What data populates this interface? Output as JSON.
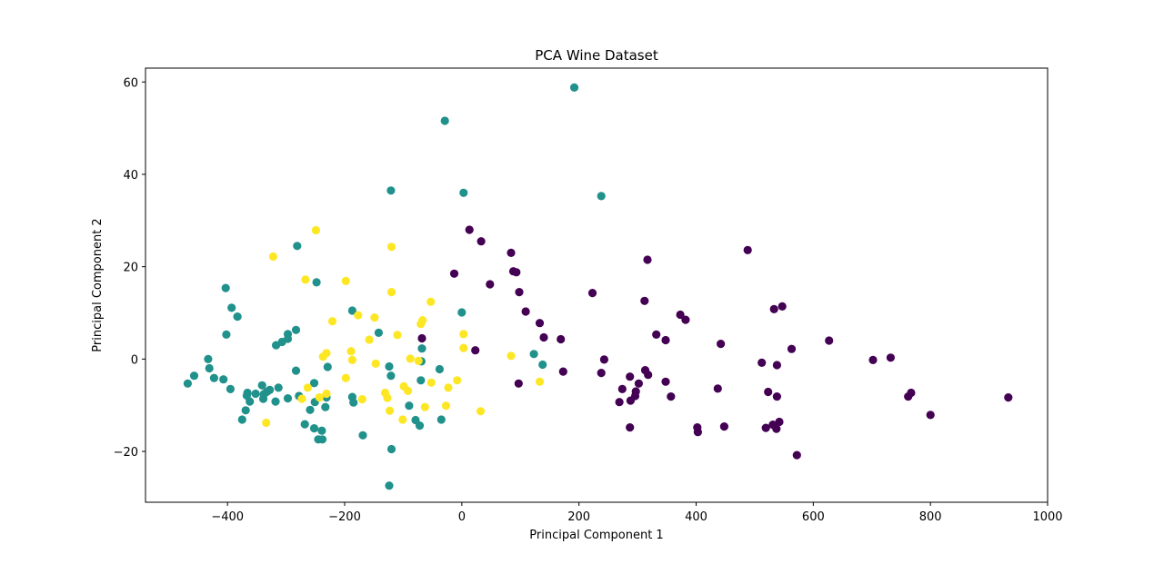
{
  "chart_data": {
    "type": "scatter",
    "title": "PCA Wine Dataset",
    "xlabel": "Principal Component 1",
    "ylabel": "Principal Component 2",
    "xlim": [
      -540,
      1000
    ],
    "ylim": [
      -31,
      63
    ],
    "xticks": [
      -400,
      -200,
      0,
      200,
      400,
      600,
      800,
      1000
    ],
    "yticks": [
      -20,
      0,
      20,
      40,
      60
    ],
    "grid": false,
    "legend": "none",
    "series": [
      {
        "color": "#440154",
        "points": [
          [
            13,
            28
          ],
          [
            33,
            25.5
          ],
          [
            -13,
            18.5
          ],
          [
            48,
            16.2
          ],
          [
            84,
            23
          ],
          [
            88,
            19
          ],
          [
            93,
            18.8
          ],
          [
            98,
            14.5
          ],
          [
            109,
            10.3
          ],
          [
            133,
            7.8
          ],
          [
            140,
            4.7
          ],
          [
            169,
            4.3
          ],
          [
            173,
            -2.7
          ],
          [
            223,
            14.3
          ],
          [
            238,
            -3.0
          ],
          [
            243,
            -0.1
          ],
          [
            23,
            1.9
          ],
          [
            97,
            -5.3
          ],
          [
            -68,
            4.5
          ],
          [
            269,
            -9.3
          ],
          [
            274,
            -6.5
          ],
          [
            287,
            -14.8
          ],
          [
            287,
            -3.8
          ],
          [
            288,
            -9.0
          ],
          [
            296,
            -8.0
          ],
          [
            297,
            -7.0
          ],
          [
            302,
            -5.3
          ],
          [
            312,
            12.6
          ],
          [
            313,
            -2.4
          ],
          [
            317,
            21.5
          ],
          [
            318,
            -3.4
          ],
          [
            332,
            5.3
          ],
          [
            348,
            4.1
          ],
          [
            348,
            -4.9
          ],
          [
            357,
            -8.1
          ],
          [
            373,
            9.6
          ],
          [
            382,
            8.5
          ],
          [
            402,
            -14.8
          ],
          [
            403,
            -15.8
          ],
          [
            437,
            -6.4
          ],
          [
            442,
            3.3
          ],
          [
            448,
            -14.6
          ],
          [
            488,
            23.6
          ],
          [
            512,
            -0.8
          ],
          [
            519,
            -14.9
          ],
          [
            523,
            -7.1
          ],
          [
            531,
            -14.2
          ],
          [
            533,
            10.8
          ],
          [
            537,
            -15.1
          ],
          [
            538,
            -1.3
          ],
          [
            538,
            -8.1
          ],
          [
            542,
            -13.6
          ],
          [
            547,
            11.4
          ],
          [
            563,
            2.2
          ],
          [
            572,
            -20.8
          ],
          [
            627,
            4.0
          ],
          [
            702,
            -0.2
          ],
          [
            732,
            0.3
          ],
          [
            762,
            -8.1
          ],
          [
            767,
            -7.3
          ],
          [
            800,
            -12.1
          ],
          [
            933,
            -8.3
          ]
        ]
      },
      {
        "color": "#21918c",
        "points": [
          [
            192,
            58.8
          ],
          [
            -29,
            51.6
          ],
          [
            238,
            35.3
          ],
          [
            -121,
            36.5
          ],
          [
            3,
            36.0
          ],
          [
            -281,
            24.5
          ],
          [
            -403,
            15.4
          ],
          [
            -248,
            16.6
          ],
          [
            -393,
            11.1
          ],
          [
            -383,
            9.2
          ],
          [
            -187,
            10.5
          ],
          [
            0,
            10.1
          ],
          [
            -402,
            5.3
          ],
          [
            -283,
            6.3
          ],
          [
            -297,
            5.4
          ],
          [
            -297,
            4.4
          ],
          [
            -307,
            3.7
          ],
          [
            -317,
            3.0
          ],
          [
            -142,
            5.7
          ],
          [
            -68,
            2.3
          ],
          [
            -433,
            0.0
          ],
          [
            -468,
            -5.3
          ],
          [
            -457,
            -3.6
          ],
          [
            -431,
            -2.0
          ],
          [
            -423,
            -4.1
          ],
          [
            -407,
            -4.4
          ],
          [
            -395,
            -6.5
          ],
          [
            -375,
            -13.1
          ],
          [
            -369,
            -11.1
          ],
          [
            -367,
            -7.9
          ],
          [
            -366,
            -7.3
          ],
          [
            -362,
            -9.2
          ],
          [
            -352,
            -7.5
          ],
          [
            -341,
            -5.7
          ],
          [
            -339,
            -8.6
          ],
          [
            -338,
            -7.6
          ],
          [
            -333,
            -7.1
          ],
          [
            -328,
            -6.7
          ],
          [
            -318,
            -9.2
          ],
          [
            -313,
            -6.2
          ],
          [
            -297,
            -8.5
          ],
          [
            -283,
            -2.5
          ],
          [
            -278,
            -8.0
          ],
          [
            -268,
            -14.1
          ],
          [
            -259,
            -11.0
          ],
          [
            -252,
            -15.0
          ],
          [
            -251,
            -9.3
          ],
          [
            -252,
            -5.2
          ],
          [
            -245,
            -17.4
          ],
          [
            -239,
            -15.5
          ],
          [
            -238,
            -17.4
          ],
          [
            -233,
            -10.4
          ],
          [
            -231,
            -8.3
          ],
          [
            -229,
            -1.7
          ],
          [
            -187,
            -8.2
          ],
          [
            -185,
            -9.4
          ],
          [
            -169,
            -16.5
          ],
          [
            -124,
            -1.6
          ],
          [
            -121,
            -3.6
          ],
          [
            -120,
            -19.5
          ],
          [
            -124,
            -27.4
          ],
          [
            -90,
            -10.1
          ],
          [
            -79,
            -13.2
          ],
          [
            -72,
            -14.4
          ],
          [
            -70,
            -4.6
          ],
          [
            -69,
            -0.5
          ],
          [
            -38,
            -2.2
          ],
          [
            -35,
            -13.1
          ],
          [
            123,
            1.1
          ],
          [
            138,
            -1.2
          ]
        ]
      },
      {
        "color": "#fde725",
        "points": [
          [
            -249,
            27.9
          ],
          [
            -322,
            22.2
          ],
          [
            -120,
            24.3
          ],
          [
            -267,
            17.2
          ],
          [
            -198,
            16.9
          ],
          [
            -120,
            14.5
          ],
          [
            -53,
            12.4
          ],
          [
            -221,
            8.2
          ],
          [
            -177,
            9.5
          ],
          [
            -149,
            9.0
          ],
          [
            -158,
            4.2
          ],
          [
            -110,
            5.2
          ],
          [
            -70,
            7.6
          ],
          [
            -67,
            8.4
          ],
          [
            3,
            5.4
          ],
          [
            -189,
            1.7
          ],
          [
            -231,
            1.3
          ],
          [
            -237,
            0.5
          ],
          [
            -187,
            -0.2
          ],
          [
            -147,
            -1.0
          ],
          [
            -88,
            0.1
          ],
          [
            -74,
            -0.4
          ],
          [
            3,
            2.4
          ],
          [
            84,
            0.7
          ],
          [
            -198,
            -4.1
          ],
          [
            -170,
            -8.7
          ],
          [
            -131,
            -7.3
          ],
          [
            -127,
            -8.4
          ],
          [
            -123,
            -11.2
          ],
          [
            -101,
            -13.1
          ],
          [
            -99,
            -5.9
          ],
          [
            -92,
            -6.9
          ],
          [
            -63,
            -10.4
          ],
          [
            -52,
            -5.1
          ],
          [
            -27,
            -10.1
          ],
          [
            -23,
            -6.2
          ],
          [
            -8,
            -4.6
          ],
          [
            32,
            -11.3
          ],
          [
            133,
            -4.9
          ],
          [
            -334,
            -13.8
          ],
          [
            -263,
            -6.2
          ],
          [
            -243,
            -8.3
          ],
          [
            -273,
            -8.6
          ],
          [
            -231,
            -7.5
          ]
        ]
      }
    ]
  }
}
